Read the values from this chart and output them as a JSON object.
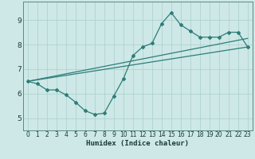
{
  "xlabel": "Humidex (Indice chaleur)",
  "xlim": [
    -0.5,
    23.5
  ],
  "ylim": [
    4.5,
    9.75
  ],
  "xticks": [
    0,
    1,
    2,
    3,
    4,
    5,
    6,
    7,
    8,
    9,
    10,
    11,
    12,
    13,
    14,
    15,
    16,
    17,
    18,
    19,
    20,
    21,
    22,
    23
  ],
  "yticks": [
    5,
    6,
    7,
    8,
    9
  ],
  "bg_color": "#cde8e6",
  "line_color": "#2d7d78",
  "grid_color": "#aacfcd",
  "series1_x": [
    0,
    1,
    2,
    3,
    4,
    5,
    6,
    7,
    8,
    9,
    10,
    11,
    12,
    13,
    14,
    15,
    16,
    17,
    18,
    19,
    20,
    21,
    22,
    23
  ],
  "series1_y": [
    6.5,
    6.4,
    6.15,
    6.15,
    5.95,
    5.65,
    5.3,
    5.15,
    5.2,
    5.9,
    6.6,
    7.55,
    7.9,
    8.05,
    8.85,
    9.3,
    8.8,
    8.55,
    8.3,
    8.3,
    8.3,
    8.5,
    8.5,
    7.9
  ],
  "line1_x": [
    0,
    23
  ],
  "line1_y": [
    6.5,
    8.25
  ],
  "line2_x": [
    0,
    23
  ],
  "line2_y": [
    6.5,
    7.9
  ]
}
